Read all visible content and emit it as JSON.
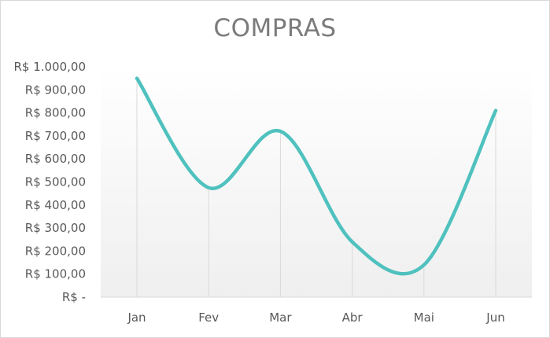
{
  "chart_data": {
    "type": "line",
    "title": "COMPRAS",
    "xlabel": "",
    "ylabel": "",
    "categories": [
      "Jan",
      "Fev",
      "Mar",
      "Abr",
      "Mai",
      "Jun"
    ],
    "series": [
      {
        "values": [
          950,
          475,
          720,
          240,
          140,
          810
        ]
      }
    ],
    "ylim": [
      0,
      1000
    ],
    "y_ticks": [
      0,
      100,
      200,
      300,
      400,
      500,
      600,
      700,
      800,
      900,
      1000
    ],
    "y_tick_labels": [
      "R$ -",
      "R$ 100,00",
      "R$ 200,00",
      "R$ 300,00",
      "R$ 400,00",
      "R$ 500,00",
      "R$ 600,00",
      "R$ 700,00",
      "R$ 800,00",
      "R$ 900,00",
      "R$ 1.000,00"
    ],
    "grid": false,
    "drop_lines": true,
    "smooth": true,
    "legend": "none",
    "colors": {
      "line": "#4fc1be",
      "drop_line": "#d9d9d9",
      "axis": "#d9d9d9",
      "plot_gradient_top": "#ffffff",
      "plot_gradient_bottom": "#efefef",
      "text": "#595959",
      "title": "#7b7b7b"
    }
  }
}
